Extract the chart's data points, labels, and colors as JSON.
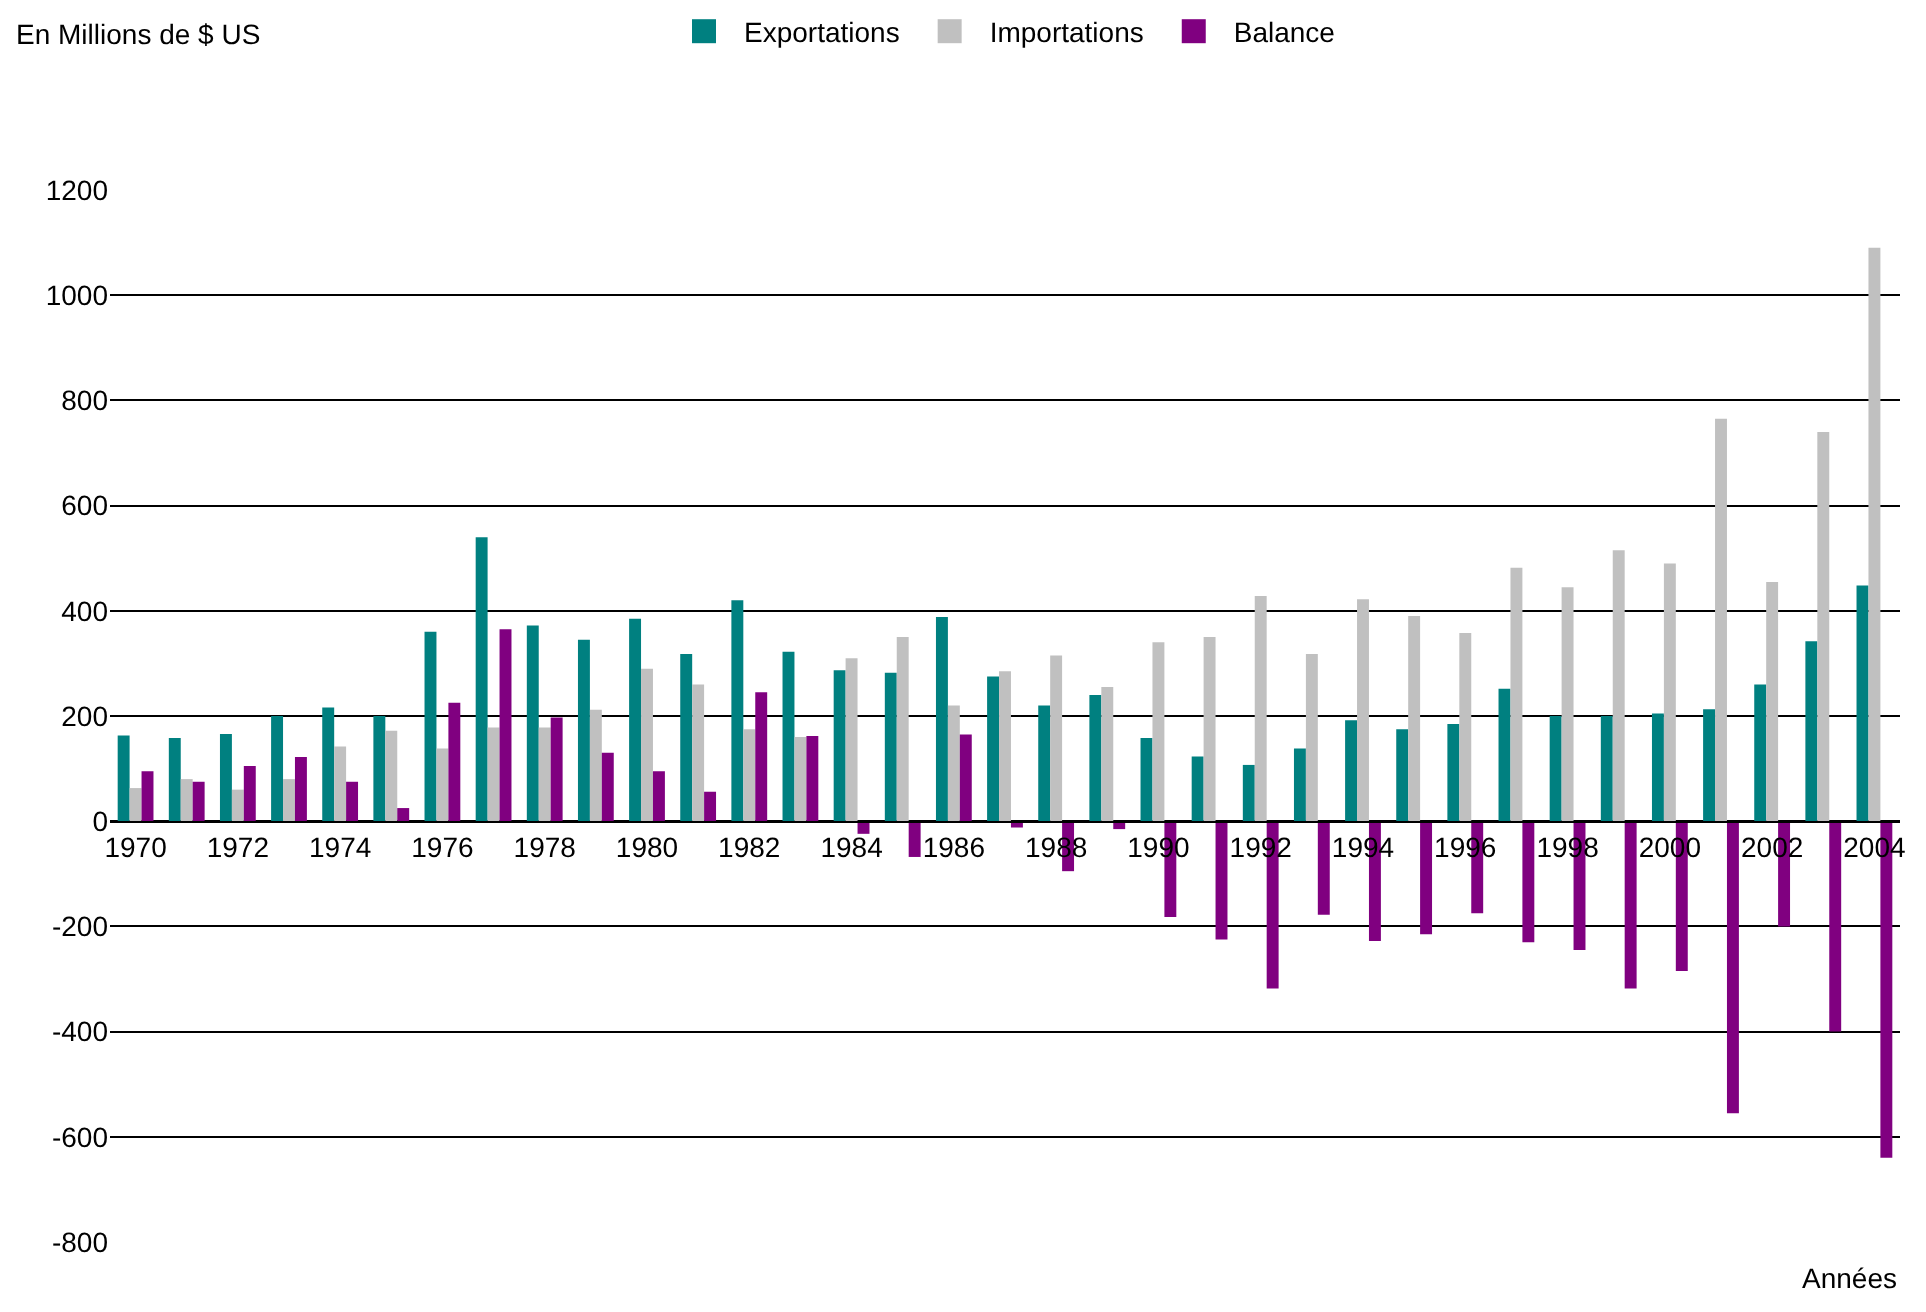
{
  "chart_data": {
    "type": "bar",
    "ylabel": "En Millions de $ US",
    "xlabel": "Années",
    "categories": [
      "1970",
      null,
      "1972",
      null,
      "1974",
      null,
      "1976",
      null,
      "1978",
      null,
      "1980",
      null,
      "1982",
      null,
      "1984",
      null,
      "1986",
      null,
      "1988",
      null,
      "1990",
      null,
      "1992",
      null,
      "1994",
      null,
      "1996",
      null,
      "1998",
      null,
      "2000",
      null,
      "2002",
      null,
      "2004"
    ],
    "series": [
      {
        "name": "Exportations",
        "color": "#008080",
        "values": [
          163,
          158,
          166,
          200,
          216,
          200,
          360,
          540,
          372,
          345,
          385,
          318,
          420,
          322,
          287,
          282,
          388,
          275,
          220,
          240,
          158,
          123,
          107,
          138,
          192,
          175,
          185,
          252,
          200,
          200,
          205,
          213,
          260,
          342,
          448
        ]
      },
      {
        "name": "Importations",
        "color": "#c0c0c0",
        "values": [
          63,
          80,
          60,
          80,
          142,
          172,
          138,
          178,
          178,
          212,
          290,
          260,
          175,
          160,
          310,
          350,
          220,
          285,
          315,
          255,
          340,
          350,
          428,
          318,
          422,
          390,
          358,
          482,
          445,
          515,
          490,
          765,
          455,
          740,
          1090
        ]
      },
      {
        "name": "Balance",
        "color": "#800080",
        "values": [
          95,
          75,
          105,
          122,
          75,
          25,
          225,
          365,
          197,
          130,
          95,
          56,
          245,
          162,
          -24,
          -68,
          165,
          -12,
          -95,
          -15,
          -182,
          -225,
          -318,
          -178,
          -228,
          -215,
          -175,
          -230,
          -245,
          -318,
          -285,
          -555,
          -200,
          -400,
          -640
        ]
      }
    ],
    "ylim": [
      -800,
      1200
    ],
    "yticks": [
      -800,
      -600,
      -400,
      -200,
      0,
      200,
      400,
      600,
      800,
      1000,
      1200
    ],
    "grid": "y",
    "legend": "top"
  }
}
